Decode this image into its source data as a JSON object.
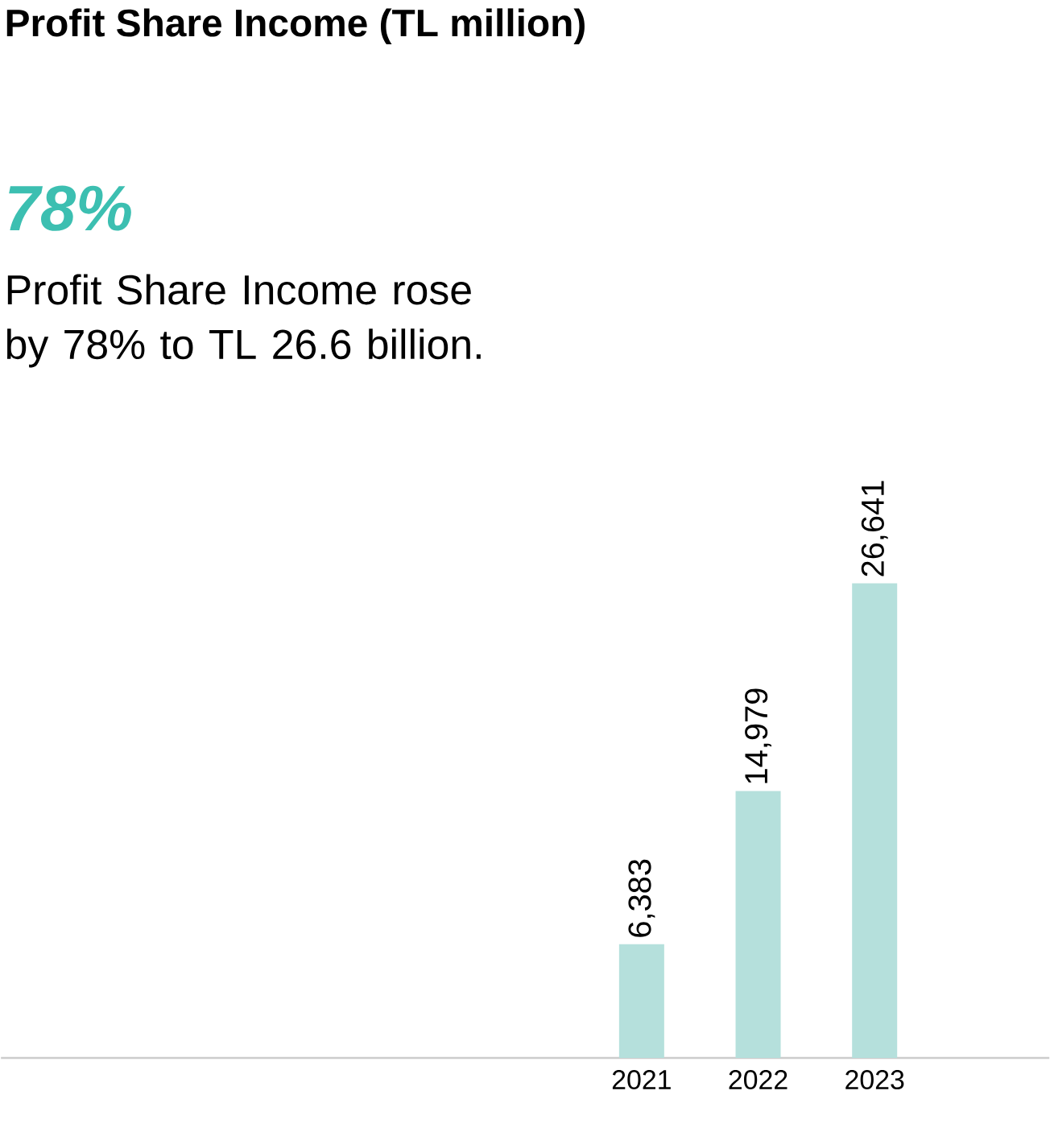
{
  "chart_data": {
    "type": "bar",
    "title": "Profit Share Income (TL million)",
    "annotations": [
      "78%",
      "Profit Share Income rose by 78% to TL 26.6 billion."
    ],
    "categories": [
      "2021",
      "2022",
      "2023"
    ],
    "values": [
      6383,
      14979,
      26641
    ],
    "value_labels": [
      "6,383",
      "14,979",
      "26,641"
    ],
    "color": "#b5e0dc"
  }
}
